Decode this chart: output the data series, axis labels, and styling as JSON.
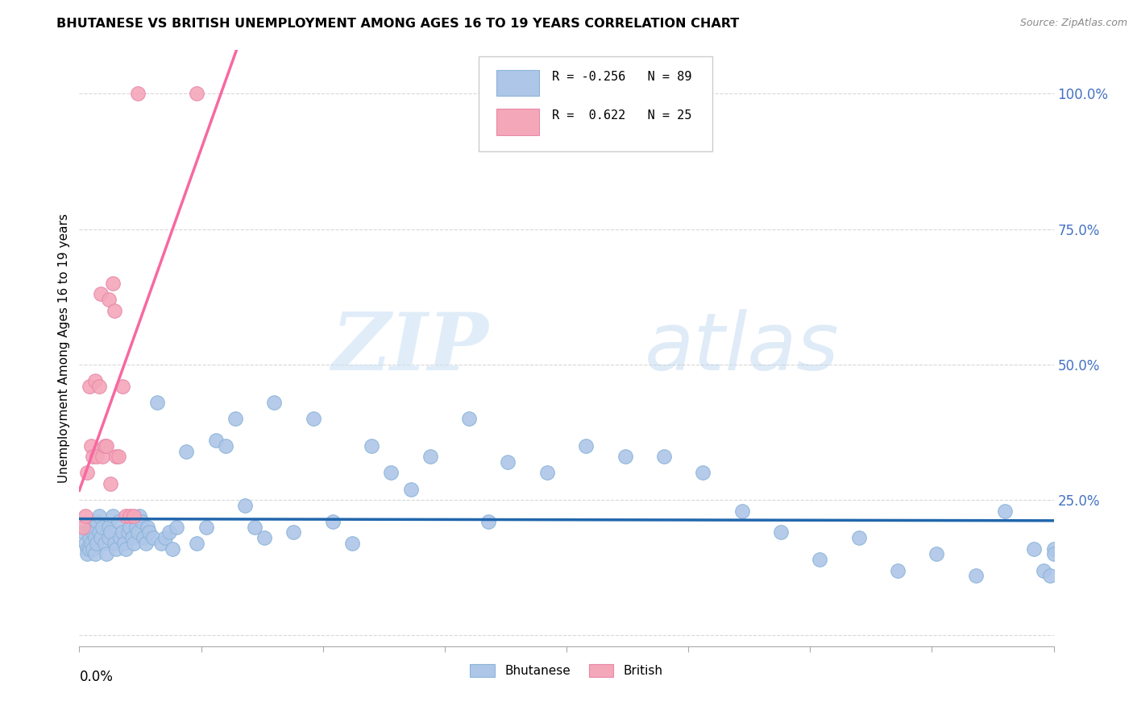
{
  "title": "BHUTANESE VS BRITISH UNEMPLOYMENT AMONG AGES 16 TO 19 YEARS CORRELATION CHART",
  "source": "Source: ZipAtlas.com",
  "ylabel": "Unemployment Among Ages 16 to 19 years",
  "xlim": [
    0.0,
    0.5
  ],
  "ylim": [
    -0.02,
    1.08
  ],
  "bhutanese_color": "#aec6e8",
  "british_color": "#f4a7b9",
  "bhutanese_line_color": "#2166ac",
  "british_line_color": "#f768a1",
  "bhutanese_R": -0.256,
  "bhutanese_N": 89,
  "british_R": 0.622,
  "british_N": 25,
  "watermark_zip": "ZIP",
  "watermark_atlas": "atlas",
  "bhutanese_x": [
    0.002,
    0.003,
    0.004,
    0.004,
    0.005,
    0.005,
    0.006,
    0.006,
    0.007,
    0.007,
    0.008,
    0.008,
    0.009,
    0.009,
    0.01,
    0.01,
    0.011,
    0.012,
    0.013,
    0.014,
    0.015,
    0.015,
    0.016,
    0.017,
    0.018,
    0.019,
    0.02,
    0.021,
    0.022,
    0.023,
    0.024,
    0.025,
    0.026,
    0.027,
    0.028,
    0.029,
    0.03,
    0.031,
    0.032,
    0.033,
    0.034,
    0.035,
    0.036,
    0.038,
    0.04,
    0.042,
    0.044,
    0.046,
    0.048,
    0.05,
    0.055,
    0.06,
    0.065,
    0.07,
    0.075,
    0.08,
    0.085,
    0.09,
    0.095,
    0.1,
    0.11,
    0.12,
    0.13,
    0.14,
    0.15,
    0.16,
    0.17,
    0.18,
    0.2,
    0.21,
    0.22,
    0.24,
    0.26,
    0.28,
    0.3,
    0.32,
    0.34,
    0.36,
    0.38,
    0.4,
    0.42,
    0.44,
    0.46,
    0.475,
    0.49,
    0.495,
    0.498,
    0.5,
    0.5
  ],
  "bhutanese_y": [
    0.19,
    0.17,
    0.16,
    0.15,
    0.18,
    0.16,
    0.2,
    0.17,
    0.19,
    0.16,
    0.15,
    0.18,
    0.21,
    0.17,
    0.22,
    0.19,
    0.18,
    0.2,
    0.17,
    0.15,
    0.2,
    0.18,
    0.19,
    0.22,
    0.17,
    0.16,
    0.21,
    0.18,
    0.19,
    0.17,
    0.16,
    0.19,
    0.2,
    0.18,
    0.17,
    0.2,
    0.19,
    0.22,
    0.21,
    0.18,
    0.17,
    0.2,
    0.19,
    0.18,
    0.43,
    0.17,
    0.18,
    0.19,
    0.16,
    0.2,
    0.34,
    0.17,
    0.2,
    0.36,
    0.35,
    0.4,
    0.24,
    0.2,
    0.18,
    0.43,
    0.19,
    0.4,
    0.21,
    0.17,
    0.35,
    0.3,
    0.27,
    0.33,
    0.4,
    0.21,
    0.32,
    0.3,
    0.35,
    0.33,
    0.33,
    0.3,
    0.23,
    0.19,
    0.14,
    0.18,
    0.12,
    0.15,
    0.11,
    0.23,
    0.16,
    0.12,
    0.11,
    0.16,
    0.15
  ],
  "british_x": [
    0.002,
    0.003,
    0.004,
    0.005,
    0.006,
    0.007,
    0.008,
    0.009,
    0.01,
    0.011,
    0.012,
    0.013,
    0.014,
    0.015,
    0.016,
    0.017,
    0.018,
    0.019,
    0.02,
    0.022,
    0.024,
    0.026,
    0.028,
    0.03,
    0.06
  ],
  "british_y": [
    0.2,
    0.22,
    0.3,
    0.46,
    0.35,
    0.33,
    0.47,
    0.33,
    0.46,
    0.63,
    0.33,
    0.35,
    0.35,
    0.62,
    0.28,
    0.65,
    0.6,
    0.33,
    0.33,
    0.46,
    0.22,
    0.22,
    0.22,
    1.0,
    1.0
  ],
  "ytick_positions": [
    0.0,
    0.25,
    0.5,
    0.75,
    1.0
  ],
  "ytick_labels": [
    "",
    "25.0%",
    "50.0%",
    "75.0%",
    "100.0%"
  ],
  "xtick_positions": [
    0.0,
    0.0625,
    0.125,
    0.1875,
    0.25,
    0.3125,
    0.375,
    0.4375,
    0.5
  ]
}
